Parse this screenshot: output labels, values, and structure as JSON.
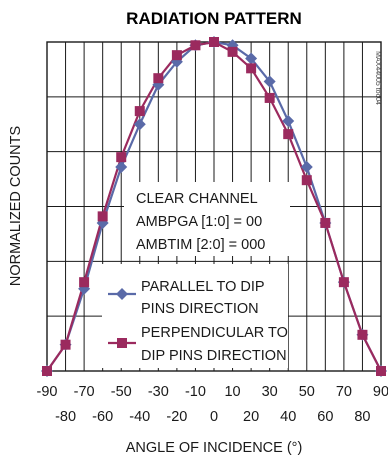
{
  "chart_data": {
    "type": "line",
    "title": "RADIATION PATTERN",
    "xlabel": "ANGLE OF INCIDENCE (°)",
    "ylabel": "NORMALIZED COUNTS",
    "xlim": [
      -90,
      90
    ],
    "ylim": [
      0,
      1
    ],
    "x_ticks_top_row": [
      "-90",
      "-70",
      "-50",
      "-30",
      "-10",
      "10",
      "30",
      "50",
      "70",
      "90"
    ],
    "x_ticks_bottom_row": [
      "-80",
      "-60",
      "-40",
      "-20",
      "0",
      "20",
      "40",
      "60",
      "80"
    ],
    "grid": true,
    "x": [
      -90,
      -80,
      -70,
      -60,
      -50,
      -40,
      -30,
      -20,
      -10,
      0,
      10,
      20,
      30,
      40,
      50,
      60,
      70,
      80,
      90
    ],
    "series": [
      {
        "name": "PARALLEL TO DIP PINS DIRECTION",
        "legend_lines": [
          "PARALLEL TO DIP",
          "PINS DIRECTION"
        ],
        "color": "#5a6aa8",
        "marker": "diamond",
        "values": [
          0.0,
          0.08,
          0.25,
          0.45,
          0.62,
          0.75,
          0.87,
          0.94,
          0.99,
          1.0,
          0.99,
          0.95,
          0.88,
          0.76,
          0.62,
          0.45,
          0.27,
          0.11,
          0.0
        ]
      },
      {
        "name": "PERPENDICULAR TO DIP PINS DIRECTION",
        "legend_lines": [
          "PERPENDICULAR TO",
          "DIP PINS DIRECTION"
        ],
        "color": "#9b2a5e",
        "marker": "square",
        "values": [
          0.0,
          0.08,
          0.27,
          0.47,
          0.65,
          0.79,
          0.89,
          0.96,
          0.99,
          1.0,
          0.97,
          0.92,
          0.83,
          0.72,
          0.58,
          0.45,
          0.27,
          0.11,
          0.0
        ]
      }
    ],
    "annotation_lines": [
      "CLEAR CHANNEL",
      "AMBPGA [1:0] = 00",
      "AMBTIM [2:0] = 000"
    ],
    "watermark": "MAX44005 toc04"
  }
}
